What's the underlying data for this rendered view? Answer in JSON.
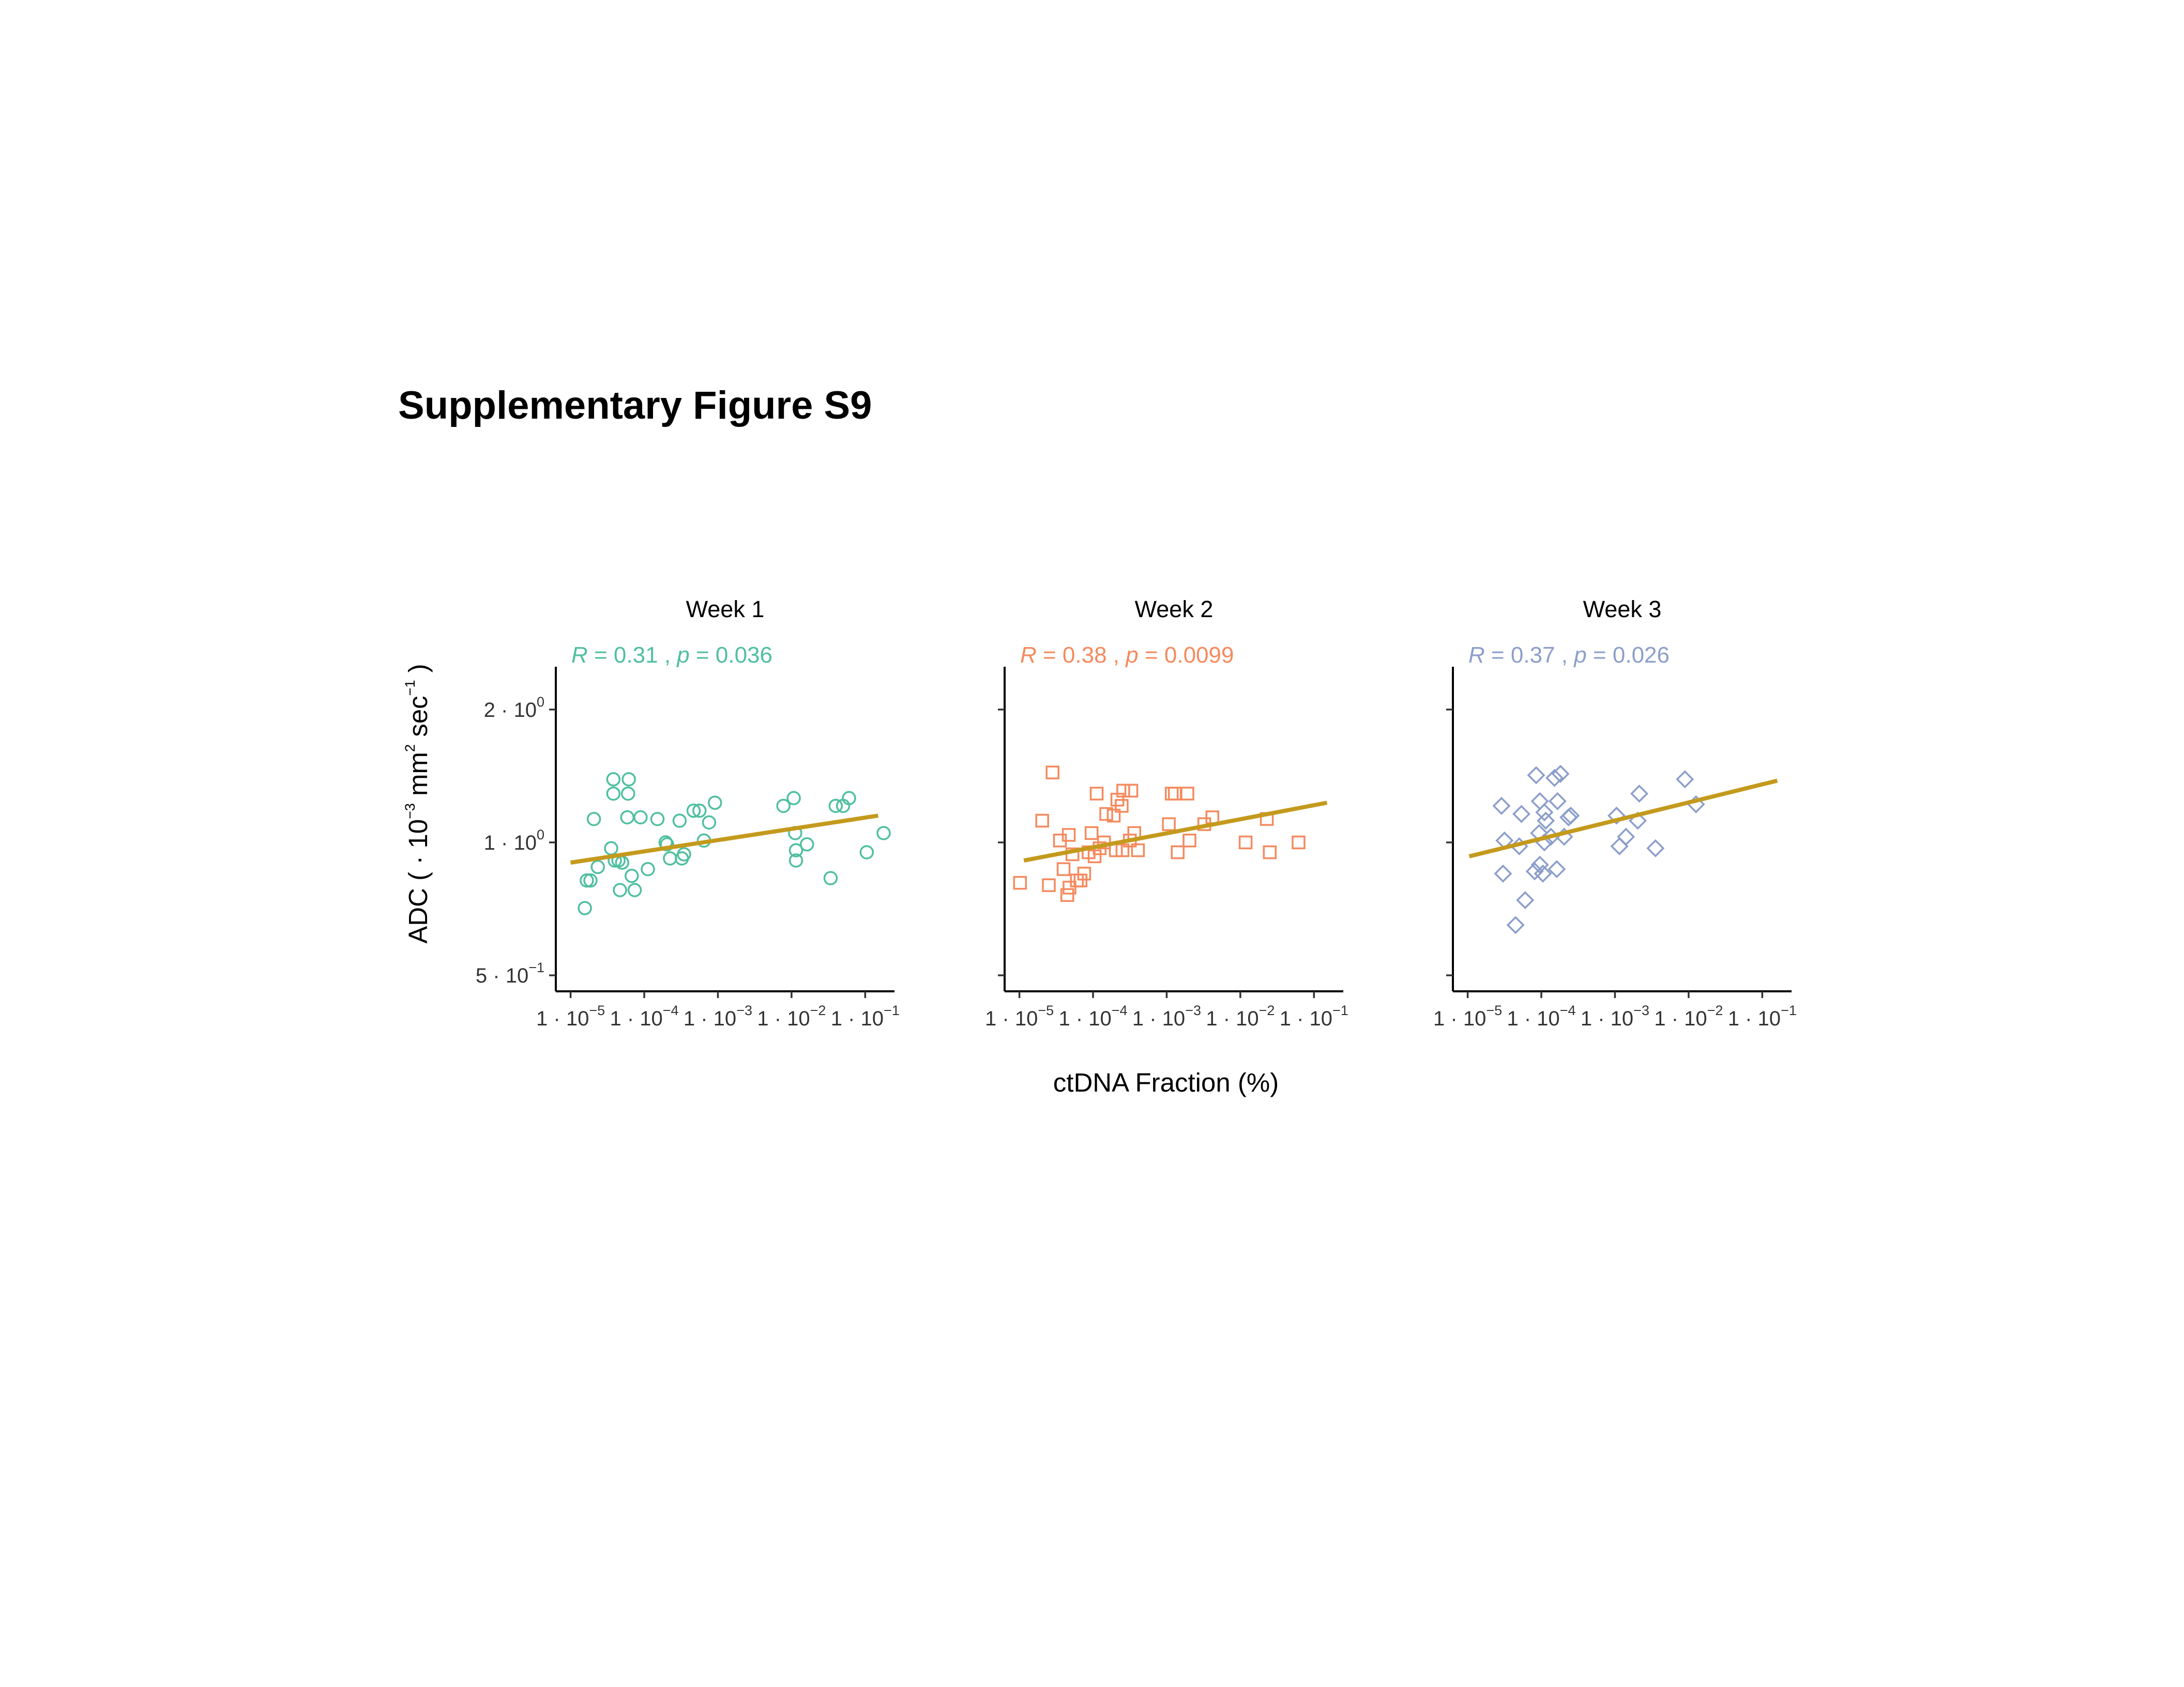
{
  "figure_title": "Supplementary Figure S9",
  "chart_data": {
    "type": "scatter",
    "xlabel": "ctDNA Fraction (%)",
    "ylabel": "ADC ( · 10^-3 mm^2 sec^-1 )",
    "x_scale": "log10",
    "y_scale": "log10",
    "x_ticks": [
      {
        "value": 1e-05,
        "mant": "1",
        "exp": "−5"
      },
      {
        "value": 0.0001,
        "mant": "1",
        "exp": "−4"
      },
      {
        "value": 0.001,
        "mant": "1",
        "exp": "−3"
      },
      {
        "value": 0.01,
        "mant": "1",
        "exp": "−2"
      },
      {
        "value": 0.1,
        "mant": "1",
        "exp": "−1"
      }
    ],
    "y_ticks": [
      {
        "value": 2,
        "mant": "2",
        "exp": "0"
      },
      {
        "value": 1,
        "mant": "1",
        "exp": "0"
      },
      {
        "value": 0.5,
        "mant": "5",
        "exp": "−1"
      }
    ],
    "xlim": [
      6.3e-06,
      0.25
    ],
    "ylim": [
      0.46,
      2.5
    ],
    "panels": [
      {
        "strip": "Week 1",
        "stat_r": "0.31",
        "stat_p": "0.036",
        "color": "#4FBF9F",
        "marker": "circle",
        "fit": {
          "x": [
            1e-05,
            0.15
          ],
          "y": [
            0.9,
            1.15
          ]
        },
        "points": [
          [
            1.56e-05,
            0.71
          ],
          [
            1.66e-05,
            0.82
          ],
          [
            1.86e-05,
            0.82
          ],
          [
            2.07e-05,
            1.13
          ],
          [
            2.34e-05,
            0.88
          ],
          [
            3.55e-05,
            0.97
          ],
          [
            3.81e-05,
            1.29
          ],
          [
            3.81e-05,
            1.39
          ],
          [
            3.98e-05,
            0.91
          ],
          [
            4.47e-05,
            0.91
          ],
          [
            4.68e-05,
            0.78
          ],
          [
            5.01e-05,
            0.9
          ],
          [
            5.89e-05,
            1.14
          ],
          [
            6.03e-05,
            1.29
          ],
          [
            6.17e-05,
            1.39
          ],
          [
            6.76e-05,
            0.84
          ],
          [
            7.41e-05,
            0.78
          ],
          [
            8.91e-05,
            1.14
          ],
          [
            0.000112,
            0.87
          ],
          [
            0.000151,
            1.13
          ],
          [
            0.000195,
            1.0
          ],
          [
            0.000204,
            0.99
          ],
          [
            0.000224,
            0.92
          ],
          [
            0.000302,
            1.12
          ],
          [
            0.000324,
            0.92
          ],
          [
            0.000347,
            0.94
          ],
          [
            0.000468,
            1.18
          ],
          [
            0.000562,
            1.18
          ],
          [
            0.000646,
            1.01
          ],
          [
            0.000759,
            1.11
          ],
          [
            0.000912,
            1.23
          ],
          [
            0.00776,
            1.21
          ],
          [
            0.0107,
            1.26
          ],
          [
            0.0112,
            1.05
          ],
          [
            0.0115,
            0.96
          ],
          [
            0.0115,
            0.91
          ],
          [
            0.0162,
            0.99
          ],
          [
            0.0339,
            0.83
          ],
          [
            0.0398,
            1.21
          ],
          [
            0.0501,
            1.21
          ],
          [
            0.0603,
            1.26
          ],
          [
            0.105,
            0.95
          ],
          [
            0.178,
            1.05
          ]
        ]
      },
      {
        "strip": "Week 2",
        "stat_r": "0.38",
        "stat_p": "0.0099",
        "color": "#F58A5E",
        "marker": "square",
        "fit": {
          "x": [
            1.15e-05,
            0.15
          ],
          "y": [
            0.91,
            1.23
          ]
        },
        "points": [
          [
            1.02e-05,
            0.81
          ],
          [
            2.04e-05,
            1.12
          ],
          [
            2.51e-05,
            0.8
          ],
          [
            2.82e-05,
            1.44
          ],
          [
            3.55e-05,
            1.01
          ],
          [
            3.98e-05,
            0.87
          ],
          [
            4.47e-05,
            0.76
          ],
          [
            4.68e-05,
            1.04
          ],
          [
            4.79e-05,
            0.79
          ],
          [
            5.25e-05,
            0.94
          ],
          [
            6.03e-05,
            0.82
          ],
          [
            6.76e-05,
            0.82
          ],
          [
            7.59e-05,
            0.85
          ],
          [
            8.71e-05,
            0.95
          ],
          [
            9.55e-05,
            1.05
          ],
          [
            0.000105,
            0.93
          ],
          [
            0.000112,
            1.29
          ],
          [
            0.000123,
            0.97
          ],
          [
            0.000141,
            1.0
          ],
          [
            0.000151,
            1.16
          ],
          [
            0.000191,
            1.15
          ],
          [
            0.000204,
            0.96
          ],
          [
            0.000214,
            1.25
          ],
          [
            0.000245,
            1.21
          ],
          [
            0.000251,
            0.96
          ],
          [
            0.000257,
            1.31
          ],
          [
            0.000316,
            1.01
          ],
          [
            0.000331,
            1.31
          ],
          [
            0.000363,
            1.05
          ],
          [
            0.000407,
            0.96
          ],
          [
            0.00107,
            1.1
          ],
          [
            0.00117,
            1.29
          ],
          [
            0.00129,
            1.29
          ],
          [
            0.00141,
            0.95
          ],
          [
            0.00191,
            1.29
          ],
          [
            0.00204,
            1.01
          ],
          [
            0.00324,
            1.1
          ],
          [
            0.00417,
            1.14
          ],
          [
            0.0118,
            1.0
          ],
          [
            0.0229,
            1.13
          ],
          [
            0.0251,
            0.95
          ],
          [
            0.0617,
            1.0
          ]
        ]
      },
      {
        "strip": "Week 3",
        "stat_r": "0.37",
        "stat_p": "0.026",
        "color": "#8C9ECB",
        "marker": "diamond",
        "fit": {
          "x": [
            1.05e-05,
            0.16
          ],
          "y": [
            0.93,
            1.38
          ]
        },
        "points": [
          [
            2.88e-05,
            1.21
          ],
          [
            3.02e-05,
            0.85
          ],
          [
            3.16e-05,
            1.01
          ],
          [
            4.47e-05,
            0.65
          ],
          [
            5.01e-05,
            0.98
          ],
          [
            5.37e-05,
            1.16
          ],
          [
            6.03e-05,
            0.74
          ],
          [
            8.13e-05,
            0.86
          ],
          [
            8.51e-05,
            1.42
          ],
          [
            9.33e-05,
            1.05
          ],
          [
            9.55e-05,
            0.89
          ],
          [
            9.55e-05,
            1.24
          ],
          [
            0.000105,
            0.85
          ],
          [
            0.00011,
            1.0
          ],
          [
            0.00011,
            1.17
          ],
          [
            0.000115,
            1.12
          ],
          [
            0.000135,
            1.03
          ],
          [
            0.000151,
            1.4
          ],
          [
            0.000162,
            0.87
          ],
          [
            0.000166,
            1.24
          ],
          [
            0.000182,
            1.43
          ],
          [
            0.000204,
            1.03
          ],
          [
            0.000234,
            1.14
          ],
          [
            0.000251,
            1.15
          ],
          [
            0.00105,
            1.15
          ],
          [
            0.00115,
            0.98
          ],
          [
            0.00141,
            1.03
          ],
          [
            0.00204,
            1.12
          ],
          [
            0.00214,
            1.29
          ],
          [
            0.00355,
            0.97
          ],
          [
            0.00891,
            1.39
          ],
          [
            0.0126,
            1.22
          ]
        ]
      }
    ]
  }
}
